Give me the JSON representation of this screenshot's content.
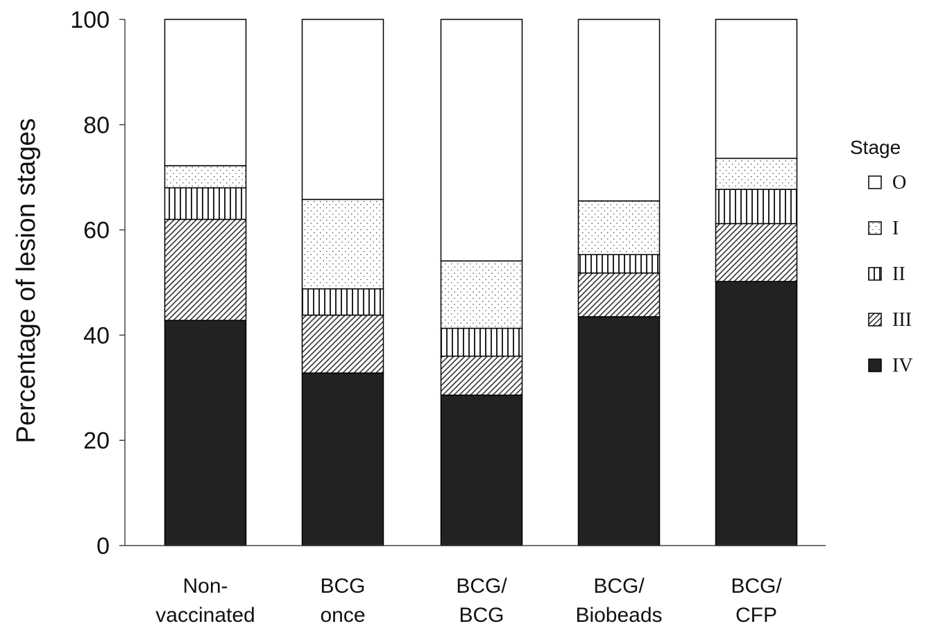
{
  "chart_data": {
    "type": "bar",
    "stacked": true,
    "title": "",
    "xlabel": "",
    "ylabel": "Percentage of lesion stages",
    "ylim": [
      0,
      100
    ],
    "yticks": [
      0,
      20,
      40,
      60,
      80,
      100
    ],
    "grid": false,
    "legend_position": "right",
    "legend_title": "Stage",
    "categories": [
      [
        "Non-",
        "vaccinated"
      ],
      [
        "BCG",
        "once"
      ],
      [
        "BCG/",
        "BCG"
      ],
      [
        "BCG/",
        "Biobeads"
      ],
      [
        "BCG/",
        "CFP"
      ]
    ],
    "series": [
      {
        "name": "IV",
        "pattern": "solid",
        "color": "#222222",
        "values": [
          42.8,
          32.8,
          28.6,
          43.5,
          50.2
        ]
      },
      {
        "name": "III",
        "pattern": "diagonal",
        "color": "#ffffff",
        "values": [
          19.2,
          11.0,
          7.4,
          8.3,
          11.0
        ]
      },
      {
        "name": "II",
        "pattern": "vertical",
        "color": "#ffffff",
        "values": [
          6.0,
          5.0,
          5.3,
          3.5,
          6.5
        ]
      },
      {
        "name": "I",
        "pattern": "dots",
        "color": "#ffffff",
        "values": [
          4.2,
          17.0,
          12.8,
          10.2,
          5.9
        ]
      },
      {
        "name": "O",
        "pattern": "empty",
        "color": "#ffffff",
        "values": [
          27.8,
          34.2,
          45.9,
          34.5,
          26.4
        ]
      }
    ],
    "legend_order": [
      "O",
      "I",
      "II",
      "III",
      "IV"
    ]
  }
}
